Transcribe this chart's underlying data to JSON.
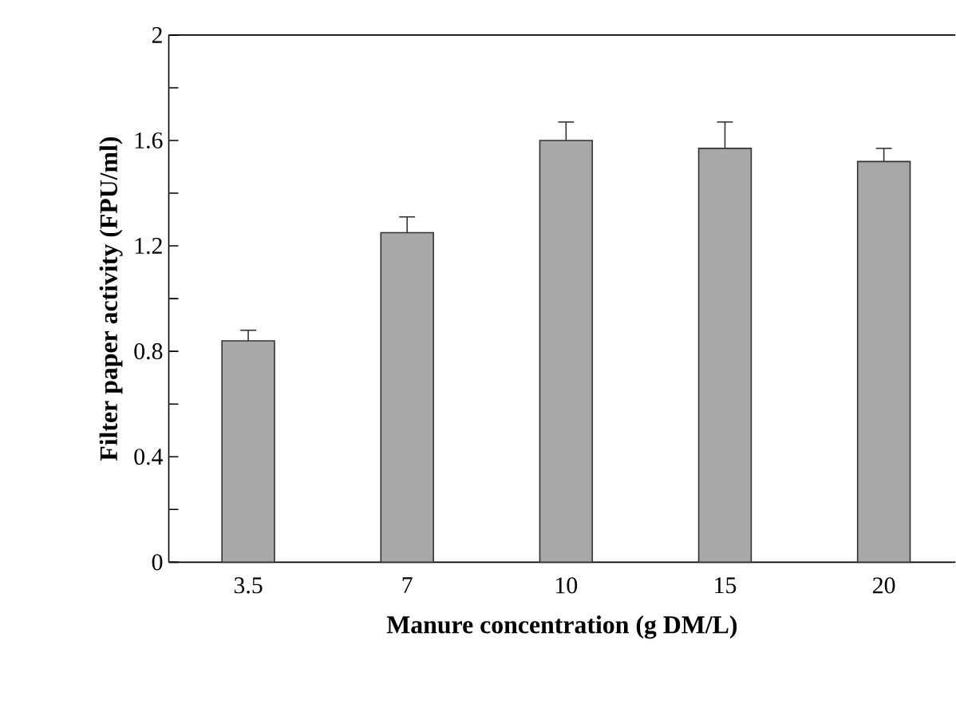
{
  "chart_data": {
    "type": "bar",
    "xlabel": "Manure concentration (g DM/L)",
    "ylabel": "Filter paper activity (FPU/ml)",
    "categories": [
      "3.5",
      "7",
      "10",
      "15",
      "20"
    ],
    "values": [
      0.84,
      1.25,
      1.6,
      1.57,
      1.52
    ],
    "errors": [
      0.04,
      0.06,
      0.07,
      0.1,
      0.05
    ],
    "color": "#a8a8a8",
    "ylim": [
      0,
      2
    ],
    "yticks": [
      0,
      {
        "value": 0.2,
        "label": null
      },
      0.4,
      {
        "value": 0.6,
        "label": null
      },
      0.8,
      {
        "value": 1.0,
        "label": null
      },
      1.2,
      {
        "value": 1.4,
        "label": null
      },
      1.6,
      {
        "value": 1.8,
        "label": null
      },
      2
    ],
    "grid": false
  }
}
